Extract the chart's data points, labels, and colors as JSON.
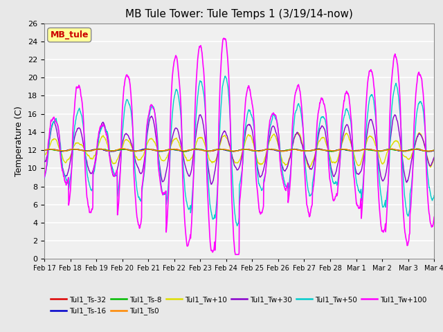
{
  "title": "MB Tule Tower: Tule Temps 1 (3/19/14-now)",
  "ylabel": "Temperature (C)",
  "ylim": [
    0,
    26
  ],
  "yticks": [
    0,
    2,
    4,
    6,
    8,
    10,
    12,
    14,
    16,
    18,
    20,
    22,
    24,
    26
  ],
  "series_order": [
    "Tul1_Ts-32",
    "Tul1_Ts-16",
    "Tul1_Ts-8",
    "Tul1_Ts0",
    "Tul1_Tw+10",
    "Tul1_Tw+30",
    "Tul1_Tw+50",
    "Tul1_Tw+100"
  ],
  "series": {
    "Tul1_Ts-32": {
      "color": "#dd0000",
      "lw": 1.0
    },
    "Tul1_Ts-16": {
      "color": "#0000cc",
      "lw": 1.0
    },
    "Tul1_Ts-8": {
      "color": "#00bb00",
      "lw": 1.0
    },
    "Tul1_Ts0": {
      "color": "#ff8800",
      "lw": 1.0
    },
    "Tul1_Tw+10": {
      "color": "#dddd00",
      "lw": 1.0
    },
    "Tul1_Tw+30": {
      "color": "#8800cc",
      "lw": 1.0
    },
    "Tul1_Tw+50": {
      "color": "#00cccc",
      "lw": 1.0
    },
    "Tul1_Tw+100": {
      "color": "#ff00ff",
      "lw": 1.2
    }
  },
  "xtick_labels": [
    "Feb 17",
    "Feb 18",
    "Feb 19",
    "Feb 20",
    "Feb 21",
    "Feb 22",
    "Feb 23",
    "Feb 24",
    "Feb 25",
    "Feb 26",
    "Feb 27",
    "Feb 28",
    "Mar 1",
    "Mar 2",
    "Mar 3",
    "Mar 4"
  ],
  "annotation_box": {
    "text": "MB_tule",
    "color": "#cc0000",
    "bg": "#ffff99"
  },
  "bg_color": "#e8e8e8",
  "plot_bg_color": "#f0f0f0",
  "grid_color": "#ffffff"
}
